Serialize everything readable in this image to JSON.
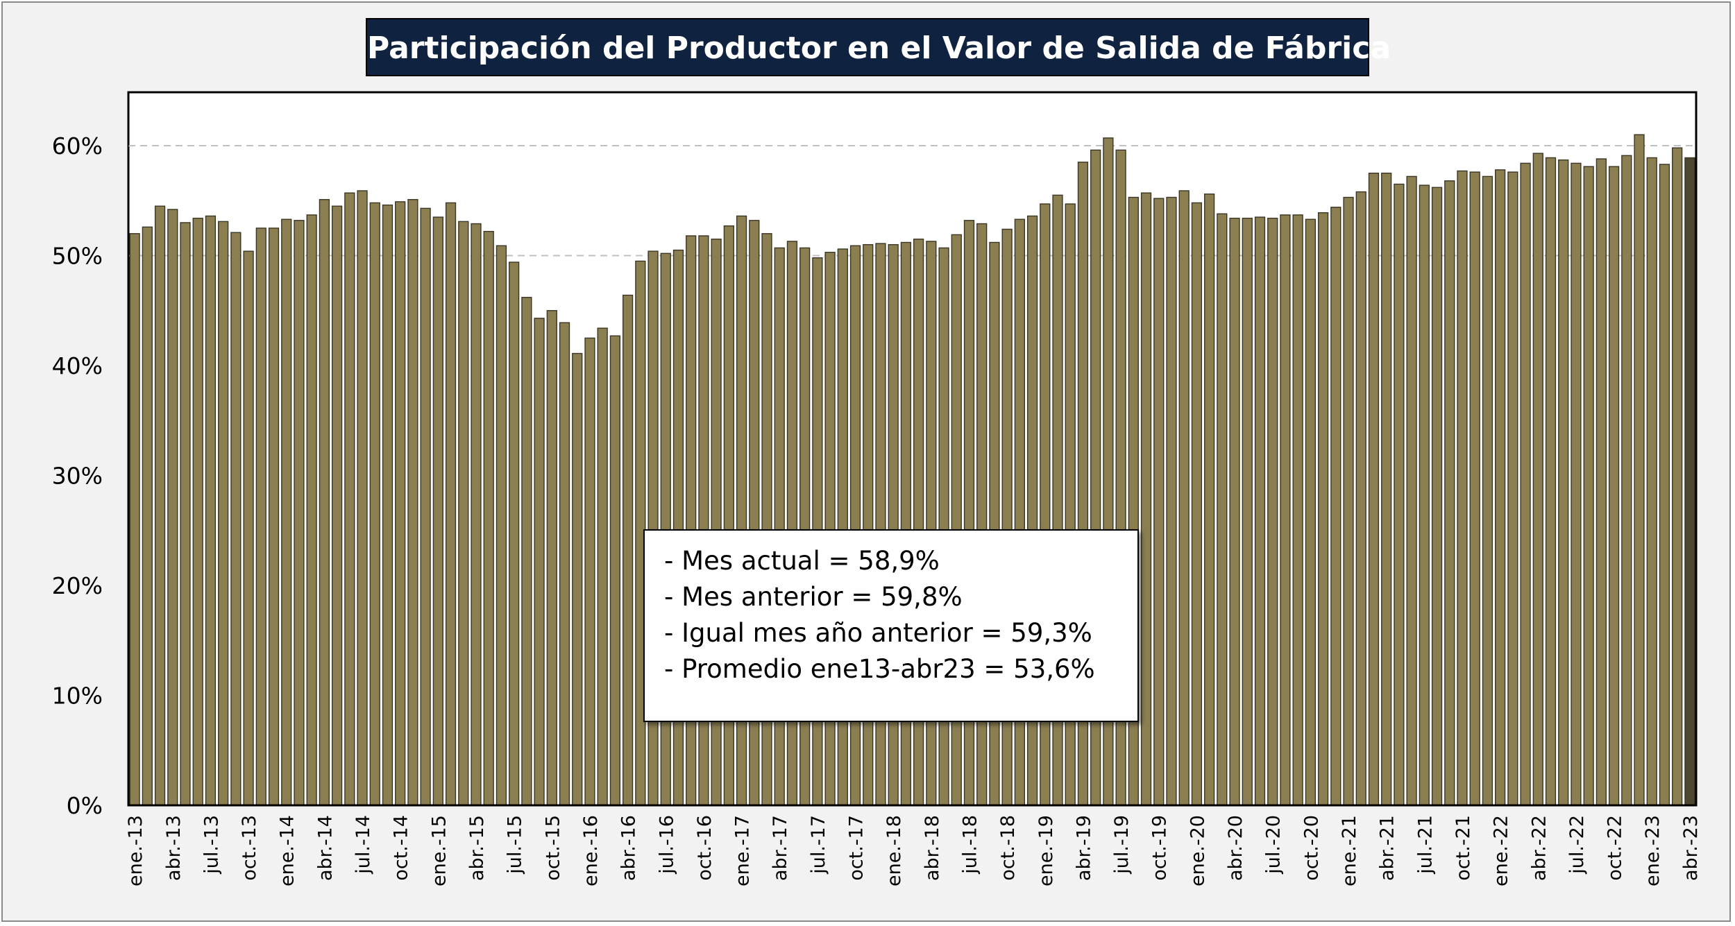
{
  "title": "Participación del Productor en el Valor de Salida de Fábrica",
  "colors": {
    "bar": "#8b7f52",
    "bar_last": "#4d4630",
    "bar_border": "#3a3524",
    "title_bg": "#0f2341",
    "title_text": "#ffffff",
    "grid": "#c0c0c0"
  },
  "summary": {
    "line1": "- Mes actual = 58,9%",
    "line2": "- Mes anterior = 59,8%",
    "line3": "- Igual mes año anterior = 59,3%",
    "line4": "- Promedio ene13-abr23 = 53,6%"
  },
  "chart_data": {
    "type": "bar",
    "title": "Participación del Productor en el Valor de Salida de Fábrica",
    "xlabel": "",
    "ylabel": "",
    "ylim": [
      0,
      65
    ],
    "y_ticks": [
      0,
      10,
      20,
      30,
      40,
      50,
      60
    ],
    "y_tick_labels": [
      "0%",
      "10%",
      "20%",
      "30%",
      "40%",
      "50%",
      "60%"
    ],
    "grid": "horizontal dashed at 50% and 60%",
    "categories": [
      "ene.-13",
      "feb.-13",
      "mar.-13",
      "abr.-13",
      "may.-13",
      "jun.-13",
      "jul.-13",
      "ago.-13",
      "sep.-13",
      "oct.-13",
      "nov.-13",
      "dic.-13",
      "ene.-14",
      "feb.-14",
      "mar.-14",
      "abr.-14",
      "may.-14",
      "jun.-14",
      "jul.-14",
      "ago.-14",
      "sep.-14",
      "oct.-14",
      "nov.-14",
      "dic.-14",
      "ene.-15",
      "feb.-15",
      "mar.-15",
      "abr.-15",
      "may.-15",
      "jun.-15",
      "jul.-15",
      "ago.-15",
      "sep.-15",
      "oct.-15",
      "nov.-15",
      "dic.-15",
      "ene.-16",
      "feb.-16",
      "mar.-16",
      "abr.-16",
      "may.-16",
      "jun.-16",
      "jul.-16",
      "ago.-16",
      "sep.-16",
      "oct.-16",
      "nov.-16",
      "dic.-16",
      "ene.-17",
      "feb.-17",
      "mar.-17",
      "abr.-17",
      "may.-17",
      "jun.-17",
      "jul.-17",
      "ago.-17",
      "sep.-17",
      "oct.-17",
      "nov.-17",
      "dic.-17",
      "ene.-18",
      "feb.-18",
      "mar.-18",
      "abr.-18",
      "may.-18",
      "jun.-18",
      "jul.-18",
      "ago.-18",
      "sep.-18",
      "oct.-18",
      "nov.-18",
      "dic.-18",
      "ene.-19",
      "feb.-19",
      "mar.-19",
      "abr.-19",
      "may.-19",
      "jun.-19",
      "jul.-19",
      "ago.-19",
      "sep.-19",
      "oct.-19",
      "nov.-19",
      "dic.-19",
      "ene.-20",
      "feb.-20",
      "mar.-20",
      "abr.-20",
      "may.-20",
      "jun.-20",
      "jul.-20",
      "ago.-20",
      "sep.-20",
      "oct.-20",
      "nov.-20",
      "dic.-20",
      "ene.-21",
      "feb.-21",
      "mar.-21",
      "abr.-21",
      "may.-21",
      "jun.-21",
      "jul.-21",
      "ago.-21",
      "sep.-21",
      "oct.-21",
      "nov.-21",
      "dic.-21",
      "ene.-22",
      "feb.-22",
      "mar.-22",
      "abr.-22",
      "may.-22",
      "jun.-22",
      "jul.-22",
      "ago.-22",
      "sep.-22",
      "oct.-22",
      "nov.-22",
      "dic.-22",
      "ene.-23",
      "feb.-23",
      "mar.-23",
      "abr.-23"
    ],
    "x_tick_labels": [
      "ene.-13",
      "abr.-13",
      "jul.-13",
      "oct.-13",
      "ene.-14",
      "abr.-14",
      "jul.-14",
      "oct.-14",
      "ene.-15",
      "abr.-15",
      "jul.-15",
      "oct.-15",
      "ene.-16",
      "abr.-16",
      "jul.-16",
      "oct.-16",
      "ene.-17",
      "abr.-17",
      "jul.-17",
      "oct.-17",
      "ene.-18",
      "abr.-18",
      "jul.-18",
      "oct.-18",
      "ene.-19",
      "abr.-19",
      "jul.-19",
      "oct.-19",
      "ene.-20",
      "abr.-20",
      "jul.-20",
      "oct.-20",
      "ene.-21",
      "abr.-21",
      "jul.-21",
      "oct.-21",
      "ene.-22",
      "abr.-22",
      "jul.-22",
      "oct.-22",
      "ene.-23",
      "abr.-23"
    ],
    "values": [
      52.0,
      52.6,
      54.5,
      54.2,
      53.0,
      53.4,
      53.6,
      53.1,
      52.1,
      50.4,
      52.5,
      52.5,
      53.3,
      53.2,
      53.7,
      55.1,
      54.5,
      55.7,
      55.9,
      54.8,
      54.6,
      54.9,
      55.1,
      54.3,
      53.5,
      54.8,
      53.1,
      52.9,
      52.2,
      50.9,
      49.4,
      46.2,
      44.3,
      45.0,
      43.9,
      41.1,
      42.5,
      43.4,
      42.7,
      46.4,
      49.5,
      50.4,
      50.2,
      50.5,
      51.8,
      51.8,
      51.5,
      52.7,
      53.6,
      53.2,
      52.0,
      50.7,
      51.3,
      50.7,
      49.8,
      50.3,
      50.6,
      50.9,
      51.0,
      51.1,
      51.0,
      51.2,
      51.5,
      51.3,
      50.7,
      51.9,
      53.2,
      52.9,
      51.2,
      52.4,
      53.3,
      53.6,
      54.7,
      55.5,
      54.7,
      58.5,
      59.6,
      60.7,
      59.6,
      55.3,
      55.7,
      55.2,
      55.3,
      55.9,
      54.8,
      55.6,
      53.8,
      53.4,
      53.4,
      53.5,
      53.4,
      53.7,
      53.7,
      53.3,
      53.9,
      54.4,
      55.3,
      55.8,
      57.5,
      57.5,
      56.5,
      57.2,
      56.4,
      56.2,
      56.8,
      57.7,
      57.6,
      57.2,
      57.8,
      57.6,
      58.4,
      59.3,
      58.9,
      58.7,
      58.4,
      58.1,
      58.8,
      58.1,
      59.1,
      61.0,
      58.9,
      58.3,
      59.8,
      58.9
    ]
  }
}
